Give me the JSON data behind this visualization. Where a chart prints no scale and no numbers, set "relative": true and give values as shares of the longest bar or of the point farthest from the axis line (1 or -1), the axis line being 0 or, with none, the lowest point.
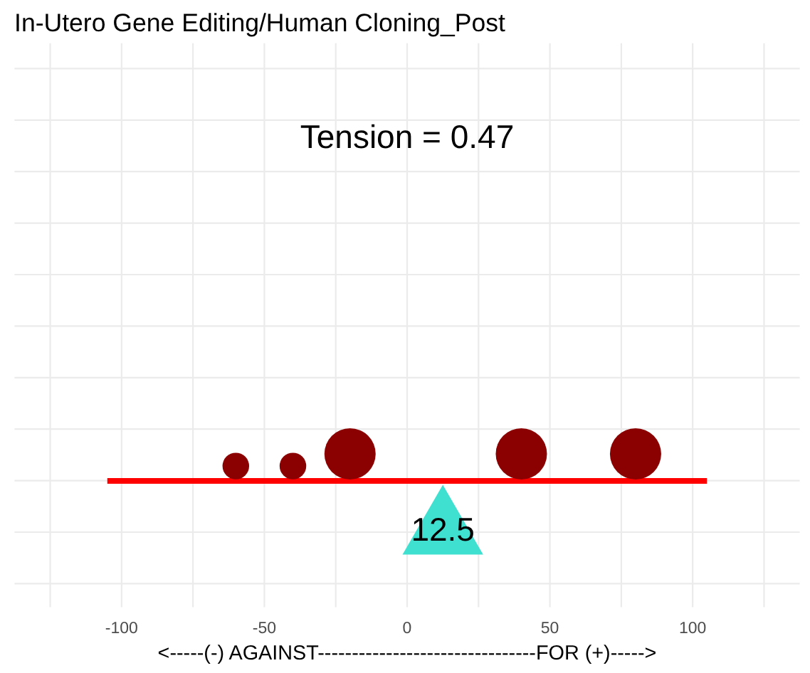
{
  "chart_data": {
    "type": "bubble",
    "title": "In-Utero Gene Editing/Human Cloning_Post",
    "xlabel": "<-----(-) AGAINST--------------------------------FOR (+)----->",
    "annotations": [
      "Tension = 0.47",
      {
        "text": "12.5",
        "x": 12.5,
        "y": 0
      }
    ],
    "relative": true,
    "grid": true,
    "tick_labels": "x",
    "xlim": [
      -137.5,
      137.5
    ],
    "xticks": [
      {
        "value": -125,
        "label": null
      },
      -100,
      {
        "value": -75,
        "label": null
      },
      -50,
      {
        "value": -25,
        "label": null
      },
      0,
      {
        "value": 25,
        "label": null
      },
      50,
      {
        "value": 75,
        "label": null
      },
      100,
      {
        "value": 125,
        "label": null
      }
    ],
    "series": [
      {
        "type": "line",
        "color": "#ff0000",
        "x": [
          -105,
          105
        ],
        "values": [
          0,
          0
        ]
      },
      {
        "color": "#8b0000",
        "x": [
          -60,
          -40,
          -20,
          40,
          80
        ],
        "values": [
          0.55,
          0.55,
          1,
          1,
          1
        ],
        "sizes": [
          0.27,
          0.27,
          1,
          1,
          1
        ]
      }
    ]
  }
}
